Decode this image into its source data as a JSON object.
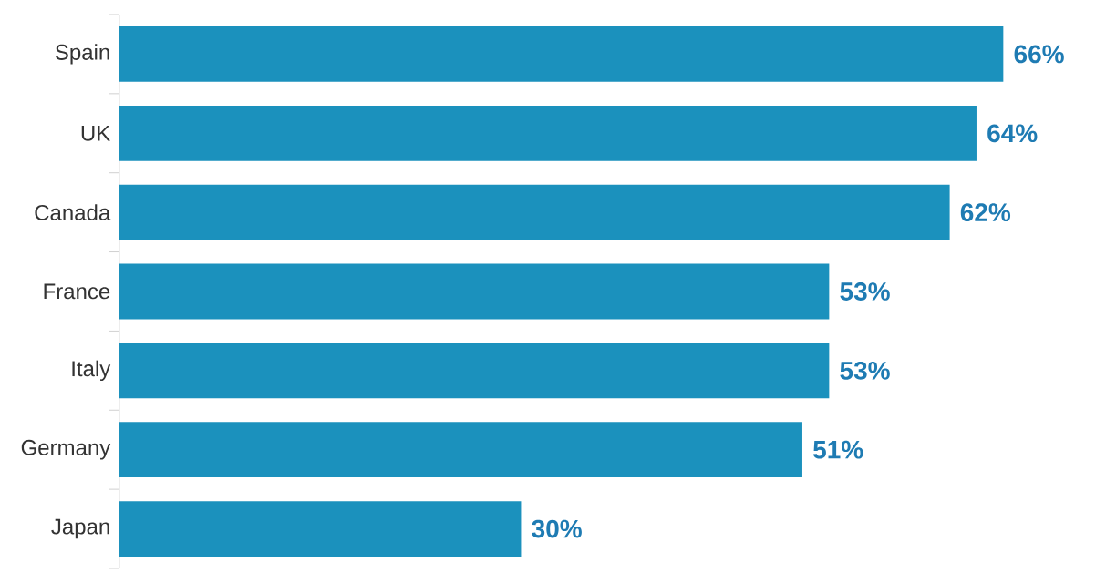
{
  "chart_data": {
    "type": "bar",
    "orientation": "horizontal",
    "categories": [
      "Spain",
      "UK",
      "Canada",
      "France",
      "Italy",
      "Germany",
      "Japan"
    ],
    "values": [
      66,
      64,
      62,
      53,
      53,
      51,
      30
    ],
    "value_labels": [
      "66%",
      "64%",
      "62%",
      "53%",
      "53%",
      "51%",
      "30%"
    ],
    "color": "#1b91bd",
    "tick_labels": "y"
  }
}
